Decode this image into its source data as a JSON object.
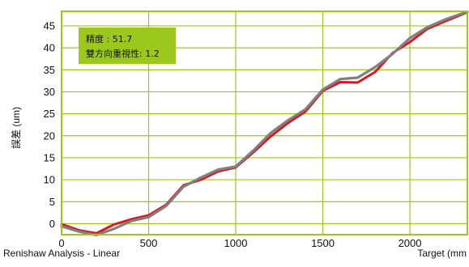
{
  "chart_data": {
    "type": "line",
    "title": "",
    "xlabel": "Target (mm",
    "ylabel": "誤差 (um)",
    "xlim": [
      0,
      2330
    ],
    "ylim": [
      -2.5,
      48.3
    ],
    "x_ticks": [
      0,
      500,
      1000,
      1500,
      2000
    ],
    "y_ticks": [
      0,
      5,
      10,
      15,
      20,
      25,
      30,
      35,
      40,
      45
    ],
    "x_tick_labels": [
      "0",
      "500",
      "1000",
      "1500",
      "2000"
    ],
    "y_tick_labels": [
      "0",
      "5",
      "10",
      "15",
      "20",
      "25",
      "30",
      "35",
      "40",
      "45"
    ],
    "grid": true,
    "colors": {
      "plot_border": "#9cc81e",
      "grid": "#9cc81e",
      "annotation_bg": "#9cc81e"
    },
    "annotation": {
      "accuracy_label": "精度 : 51.7",
      "repeatability_label": "雙方向重視性: 1.2"
    },
    "series": [
      {
        "color": "#e0141e",
        "x": [
          0,
          100,
          200,
          300,
          400,
          500,
          600,
          700,
          800,
          900,
          1000,
          1100,
          1200,
          1300,
          1400,
          1500,
          1600,
          1700,
          1800,
          1900,
          2000,
          2100,
          2200,
          2330
        ],
        "y": [
          -0.1,
          -1.5,
          -2.2,
          -0.2,
          1.0,
          1.9,
          4.3,
          8.7,
          10.0,
          11.9,
          12.8,
          16.2,
          19.8,
          22.9,
          25.5,
          30.2,
          32.2,
          32.1,
          34.5,
          38.8,
          41.3,
          44.3,
          46.0,
          48.1
        ]
      },
      {
        "color": "#808080",
        "x": [
          0,
          100,
          200,
          300,
          400,
          500,
          600,
          700,
          800,
          900,
          1000,
          1100,
          1200,
          1300,
          1400,
          1500,
          1600,
          1700,
          1800,
          1900,
          2000,
          2100,
          2200,
          2330
        ],
        "y": [
          -0.6,
          -1.8,
          -2.6,
          -1.2,
          0.6,
          1.5,
          4.0,
          8.4,
          10.5,
          12.3,
          13.0,
          16.6,
          20.6,
          23.5,
          26.0,
          30.5,
          32.9,
          33.2,
          35.6,
          38.6,
          42.2,
          44.7,
          46.4,
          48.2
        ]
      }
    ]
  },
  "footer": {
    "left_text": "Renishaw Analysis - Linear",
    "right_text": "Target (mm"
  }
}
